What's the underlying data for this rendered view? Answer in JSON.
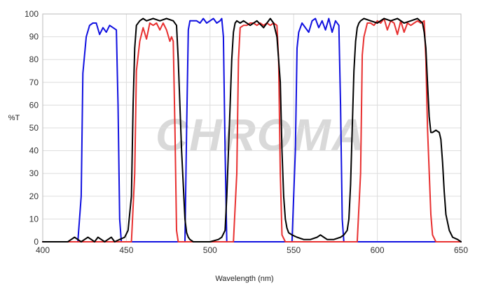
{
  "chart_data": {
    "type": "line",
    "title": "",
    "xlabel": "Wavelength (nm)",
    "ylabel": "%T",
    "xlim": [
      400,
      650
    ],
    "ylim": [
      0,
      100
    ],
    "xticks": [
      400,
      450,
      500,
      550,
      600,
      650
    ],
    "yticks": [
      0,
      10,
      20,
      30,
      40,
      50,
      60,
      70,
      80,
      90,
      100
    ],
    "grid": true,
    "legend": "none",
    "watermark": "CHROMA",
    "colors": {
      "blue": "#1010e0",
      "red": "#e83030",
      "black": "#000000",
      "grid": "#dddddd"
    },
    "series": [
      {
        "color": "#1010e0",
        "x": [
          400,
          421,
          423,
          424,
          426,
          428,
          430,
          432,
          434,
          436,
          438,
          440,
          442,
          444,
          445,
          446,
          447,
          450,
          480,
          485,
          486,
          487,
          488,
          490,
          492,
          494,
          496,
          498,
          500,
          502,
          504,
          506,
          507,
          508,
          509,
          510,
          520,
          549,
          551,
          552,
          553,
          555,
          557,
          559,
          561,
          563,
          565,
          567,
          569,
          571,
          573,
          575,
          577,
          578,
          579,
          580,
          581,
          590,
          650
        ],
        "y": [
          0,
          0,
          20,
          74,
          90,
          95,
          96,
          96,
          91,
          94,
          92,
          95,
          94,
          93,
          60,
          10,
          0,
          0,
          0,
          0,
          50,
          93,
          97,
          97,
          97,
          96,
          98,
          96,
          97,
          98,
          96,
          97,
          98,
          90,
          40,
          0,
          0,
          0,
          40,
          85,
          92,
          96,
          94,
          92,
          97,
          98,
          94,
          97,
          93,
          98,
          92,
          97,
          95,
          60,
          10,
          0,
          0,
          0,
          0
        ]
      },
      {
        "color": "#e83030",
        "x": [
          400,
          453,
          455,
          456,
          458,
          460,
          462,
          464,
          466,
          468,
          470,
          472,
          474,
          476,
          477,
          478,
          479,
          480,
          481,
          485,
          514,
          516,
          517,
          518,
          520,
          522,
          524,
          526,
          528,
          530,
          532,
          534,
          536,
          538,
          540,
          541,
          542,
          543,
          545,
          588,
          590,
          591,
          592,
          594,
          596,
          598,
          600,
          602,
          604,
          606,
          608,
          610,
          612,
          614,
          616,
          618,
          620,
          622,
          624,
          626,
          628,
          629,
          630,
          632,
          633,
          635,
          650
        ],
        "y": [
          0,
          0,
          30,
          75,
          88,
          94,
          89,
          96,
          95,
          96,
          93,
          96,
          93,
          88,
          90,
          88,
          50,
          5,
          0,
          0,
          0,
          30,
          80,
          94,
          95,
          95,
          96,
          96,
          95,
          96,
          95,
          96,
          95,
          96,
          95,
          80,
          30,
          3,
          0,
          0,
          30,
          82,
          90,
          96,
          96,
          95,
          97,
          96,
          98,
          93,
          97,
          96,
          91,
          97,
          92,
          96,
          95,
          96,
          97,
          96,
          97,
          80,
          50,
          12,
          3,
          0,
          0
        ]
      },
      {
        "color": "#000000",
        "x": [
          400,
          405,
          408,
          412,
          415,
          417,
          419,
          421,
          423,
          425,
          427,
          429,
          431,
          433,
          435,
          437,
          439,
          441,
          443,
          446,
          449,
          451,
          453,
          454,
          455,
          456,
          458,
          460,
          462,
          466,
          470,
          474,
          478,
          480,
          481,
          483,
          485,
          486,
          487,
          488,
          490,
          495,
          500,
          505,
          507,
          509,
          510,
          511,
          512,
          513,
          514,
          515,
          516,
          518,
          520,
          524,
          528,
          532,
          536,
          538,
          540,
          542,
          543,
          544,
          545,
          546,
          547,
          549,
          552,
          556,
          560,
          564,
          566,
          568,
          570,
          574,
          578,
          580,
          582,
          583,
          584,
          585,
          586,
          587,
          588,
          589,
          590,
          592,
          596,
          600,
          604,
          608,
          612,
          616,
          620,
          624,
          627,
          628,
          629,
          630,
          631,
          632,
          633,
          635,
          637,
          638,
          639,
          640,
          641,
          643,
          645,
          648,
          650
        ],
        "y": [
          0,
          0,
          0,
          0,
          0,
          1,
          2,
          1,
          0,
          1,
          2,
          1,
          0,
          2,
          1,
          0,
          1,
          2,
          0,
          1,
          2,
          5,
          20,
          60,
          85,
          95,
          97,
          98,
          97,
          98,
          97,
          98,
          97,
          95,
          80,
          40,
          10,
          4,
          2,
          1,
          0,
          0,
          0,
          1,
          2,
          5,
          20,
          40,
          60,
          80,
          92,
          96,
          97,
          96,
          97,
          95,
          97,
          94,
          98,
          96,
          90,
          70,
          40,
          20,
          10,
          6,
          4,
          3,
          2,
          1,
          1,
          2,
          3,
          2,
          1,
          1,
          2,
          3,
          5,
          10,
          25,
          50,
          75,
          88,
          94,
          96,
          97,
          98,
          97,
          96,
          98,
          97,
          98,
          96,
          97,
          98,
          96,
          92,
          85,
          70,
          55,
          48,
          48,
          49,
          48,
          45,
          35,
          22,
          12,
          5,
          2,
          1,
          0
        ]
      }
    ]
  }
}
